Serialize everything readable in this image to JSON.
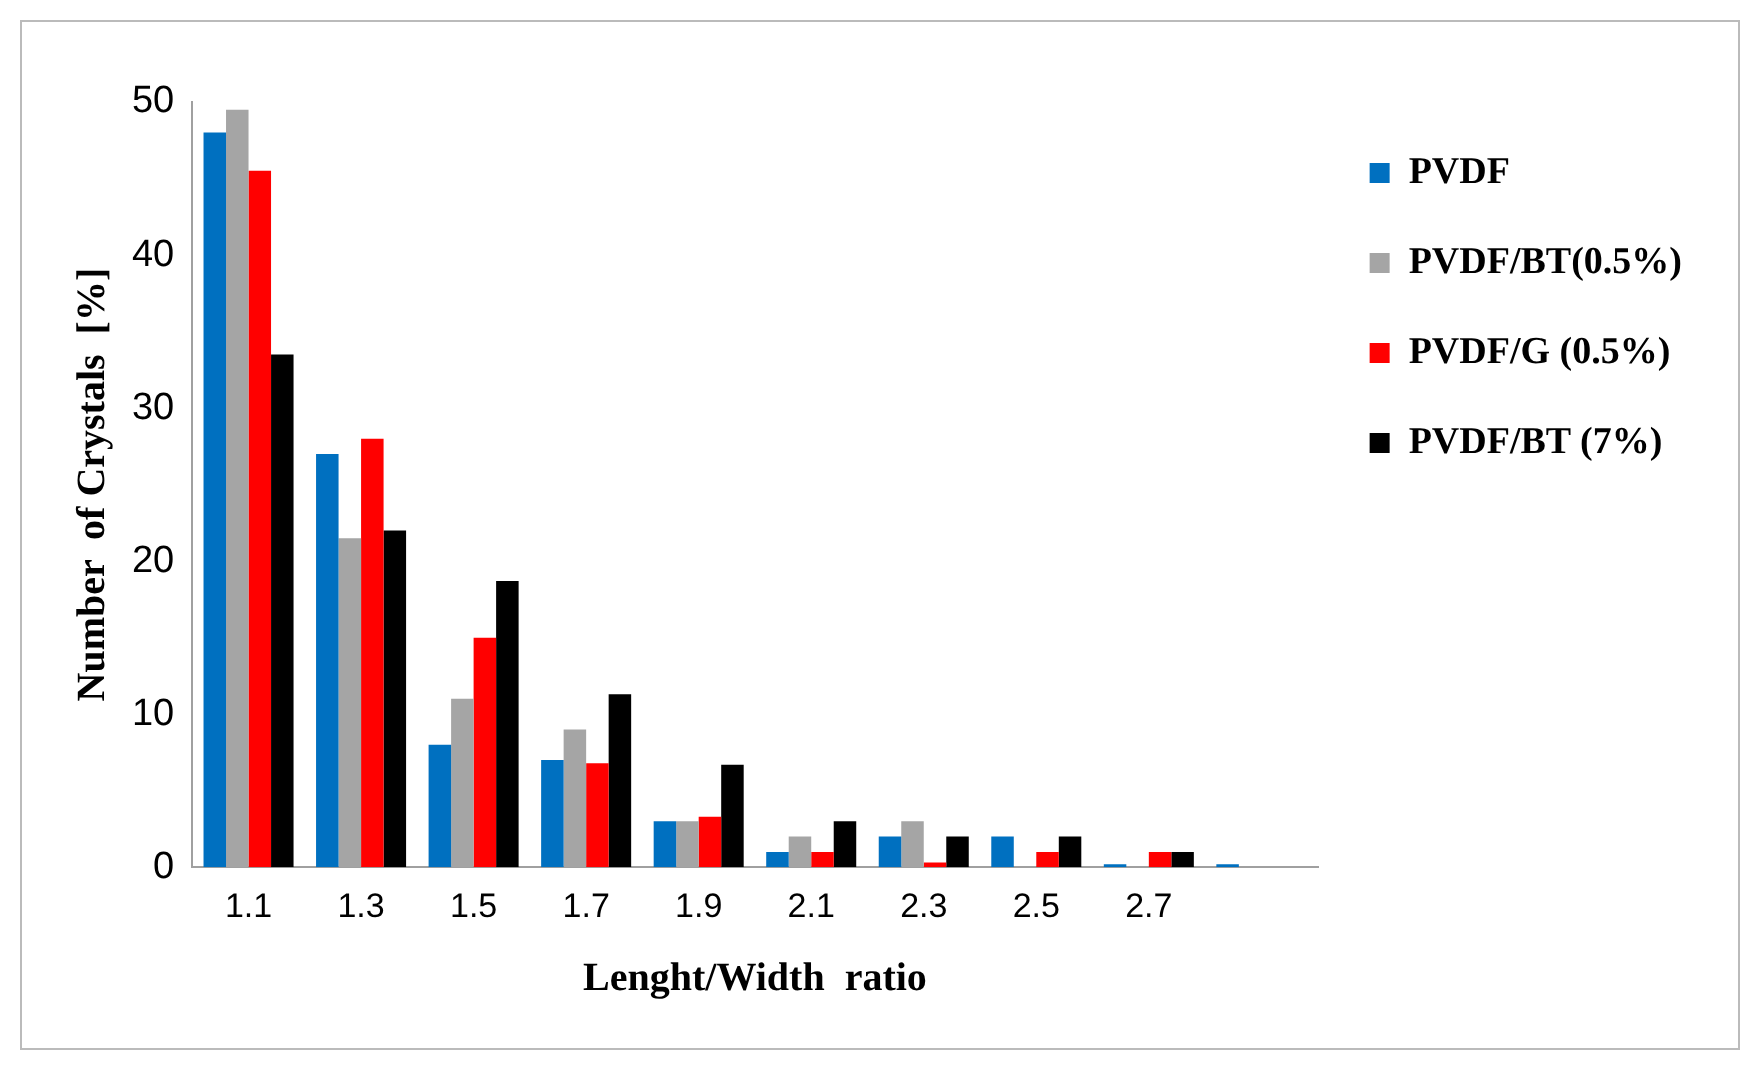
{
  "chart_data": {
    "type": "bar",
    "xlabel": "Lenght/Width  ratio",
    "ylabel": "Number  of Crystals  [%]",
    "categories": [
      "1.1",
      "1.3",
      "1.5",
      "1.7",
      "1.9",
      "2.1",
      "2.3",
      "2.5",
      "2.7",
      null
    ],
    "series": [
      {
        "name": "PVDF",
        "color": "#0070c0",
        "values": [
          48,
          27,
          8,
          7,
          3,
          1,
          2,
          2,
          0.2,
          0.2
        ]
      },
      {
        "name": "PVDF/BT(0.5%)",
        "color": "#a5a5a5",
        "values": [
          49.5,
          21.5,
          11,
          9,
          3,
          2,
          3,
          0,
          0,
          0
        ]
      },
      {
        "name": "PVDF/G (0.5%)",
        "color": "#ff0000",
        "values": [
          45.5,
          28,
          15,
          6.8,
          3.3,
          1,
          0.3,
          1,
          1,
          0
        ]
      },
      {
        "name": "PVDF/BT (7%)",
        "color": "#000000",
        "values": [
          33.5,
          22,
          18.7,
          11.3,
          6.7,
          3,
          2,
          2,
          1,
          0
        ]
      }
    ],
    "ylim": [
      0,
      50
    ],
    "yticks": [
      0,
      10,
      20,
      30,
      40,
      50
    ],
    "grid": false,
    "legend": "right"
  }
}
